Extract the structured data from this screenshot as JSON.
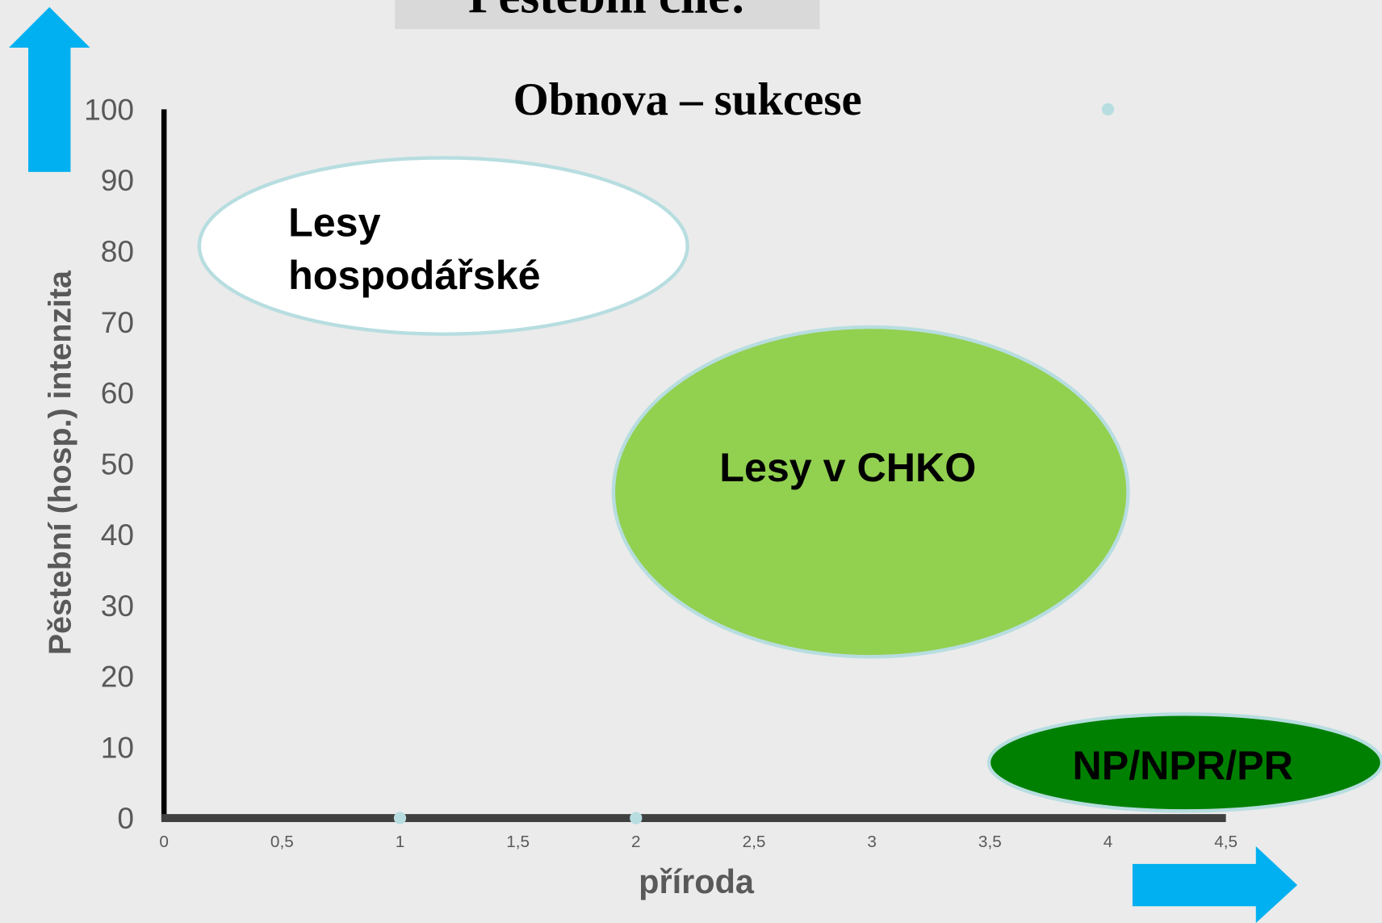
{
  "chart_data": {
    "type": "scatter",
    "title": "Pěstební cíle:",
    "subtitle": "Obnova – sukcese",
    "x_label": "příroda",
    "y_label": "Pěstební (hosp.) intenzita",
    "x": [
      1,
      2,
      4
    ],
    "series": [
      {
        "color": "#b7dde0",
        "values": [
          0,
          0,
          100
        ]
      }
    ],
    "xlim": [
      0,
      4.5
    ],
    "xticks": [
      0,
      {
        "value": 0.5,
        "label": "0,5"
      },
      1,
      {
        "value": 1.5,
        "label": "1,5"
      },
      2,
      {
        "value": 2.5,
        "label": "2,5"
      },
      3,
      {
        "value": 3.5,
        "label": "3,5"
      },
      4,
      {
        "value": 4.5,
        "label": "4,5"
      }
    ],
    "ylim": [
      0,
      100
    ],
    "yticks": [
      0,
      10,
      20,
      30,
      40,
      50,
      60,
      70,
      80,
      90,
      100
    ],
    "grid": false,
    "annotations": [
      [
        "Lesy",
        "hospodářské"
      ],
      [
        "Lesy v CHKO"
      ],
      [
        "NP/NPR/PR"
      ]
    ]
  }
}
